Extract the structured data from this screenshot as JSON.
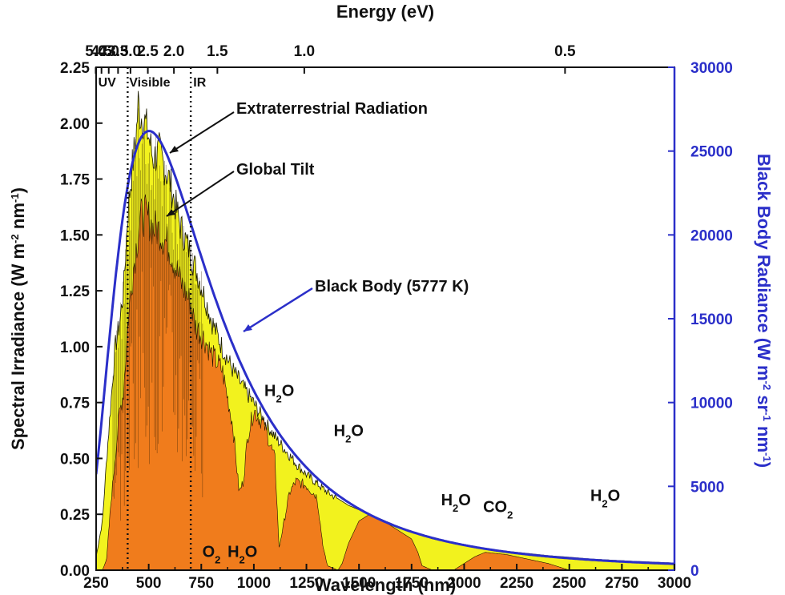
{
  "chart_data": {
    "type": "area",
    "x_axis": {
      "label": "Wavelength (nm)",
      "range": [
        250,
        3000
      ],
      "ticks": [
        250,
        500,
        750,
        1000,
        1250,
        1500,
        1750,
        2000,
        2250,
        2500,
        2750,
        3000
      ]
    },
    "top_axis": {
      "label": "Energy (eV)",
      "ticks": [
        5.0,
        4.5,
        4.0,
        3.5,
        3.0,
        2.5,
        2.0,
        1.5,
        1.0,
        0.5
      ],
      "tick_labels": [
        "5.0",
        "4.5",
        "4.0",
        "3.5",
        "3.0",
        "2.5",
        "2.0",
        "1.5",
        "1.0",
        "0.5"
      ]
    },
    "y_axis_left": {
      "label": "Spectral Irradiance (W m-2 nm-1)",
      "label_parts": [
        "Spectral Irradiance (W m",
        "-2",
        " nm",
        "-1",
        ")"
      ],
      "range": [
        0,
        2.25
      ],
      "ticks": [
        0,
        0.25,
        0.5,
        0.75,
        1.0,
        1.25,
        1.5,
        1.75,
        2.0,
        2.25
      ],
      "tick_labels": [
        "0.00",
        "0.25",
        "0.50",
        "0.75",
        "1.00",
        "1.25",
        "1.50",
        "1.75",
        "2.00",
        "2.25"
      ]
    },
    "y_axis_right": {
      "label": "Black Body Radiance (W m-2 sr-1 nm-1)",
      "label_parts": [
        "Black Body Radiance (W m",
        "-2",
        " sr",
        "-1",
        " nm",
        "-1",
        ")"
      ],
      "range": [
        0,
        30000
      ],
      "ticks": [
        0,
        5000,
        10000,
        15000,
        20000,
        25000,
        30000
      ],
      "color": "#2b2fc9"
    },
    "series": [
      {
        "name": "Extraterrestrial Radiation",
        "color": "#f2f21e",
        "x": [
          250,
          280,
          300,
          320,
          340,
          360,
          380,
          400,
          420,
          440,
          450,
          460,
          480,
          500,
          520,
          550,
          600,
          650,
          700,
          750,
          800,
          850,
          900,
          950,
          1000,
          1050,
          1100,
          1150,
          1200,
          1250,
          1300,
          1350,
          1400,
          1450,
          1500,
          1550,
          1600,
          1650,
          1700,
          1750,
          1800,
          1850,
          1900,
          1950,
          2000,
          2100,
          2200,
          2300,
          2400,
          2500,
          2600,
          2700,
          2800,
          2900,
          3000
        ],
        "y": [
          0.06,
          0.22,
          0.5,
          0.75,
          1.0,
          1.1,
          1.25,
          1.6,
          1.8,
          1.95,
          2.1,
          2.05,
          2.02,
          1.95,
          1.85,
          1.88,
          1.75,
          1.55,
          1.42,
          1.28,
          1.12,
          1.0,
          0.9,
          0.82,
          0.75,
          0.67,
          0.6,
          0.54,
          0.48,
          0.43,
          0.39,
          0.35,
          0.32,
          0.29,
          0.27,
          0.25,
          0.23,
          0.21,
          0.19,
          0.17,
          0.155,
          0.14,
          0.13,
          0.12,
          0.11,
          0.095,
          0.085,
          0.075,
          0.065,
          0.058,
          0.05,
          0.045,
          0.04,
          0.036,
          0.032
        ]
      },
      {
        "name": "Global Tilt",
        "color": "#f07c1c",
        "x": [
          280,
          300,
          320,
          340,
          360,
          380,
          400,
          420,
          440,
          460,
          480,
          500,
          520,
          550,
          600,
          650,
          700,
          720,
          760,
          800,
          850,
          900,
          930,
          950,
          970,
          1000,
          1050,
          1100,
          1120,
          1140,
          1170,
          1200,
          1250,
          1300,
          1330,
          1350,
          1400,
          1420,
          1450,
          1500,
          1550,
          1600,
          1650,
          1700,
          1750,
          1780,
          1800,
          1850,
          1950,
          2000,
          2050,
          2100,
          2200,
          2300,
          2400,
          2500
        ],
        "y": [
          0,
          0.05,
          0.3,
          0.5,
          0.7,
          0.8,
          1.1,
          1.3,
          1.45,
          1.58,
          1.6,
          1.58,
          1.54,
          1.53,
          1.45,
          1.3,
          1.2,
          1.1,
          1.05,
          0.97,
          0.9,
          0.65,
          0.35,
          0.4,
          0.6,
          0.72,
          0.65,
          0.5,
          0.1,
          0.2,
          0.35,
          0.4,
          0.38,
          0.33,
          0.1,
          0.02,
          0.0,
          0.03,
          0.12,
          0.22,
          0.25,
          0.23,
          0.2,
          0.17,
          0.14,
          0.08,
          0.02,
          0.0,
          0.0,
          0.03,
          0.06,
          0.08,
          0.07,
          0.05,
          0.03,
          0.0
        ]
      },
      {
        "name": "Black Body (5777 K)",
        "axis": "right",
        "temperature_K": 5777,
        "color": "#2b2fc9"
      }
    ],
    "regions": [
      {
        "label": "UV",
        "x_boundary": 400
      },
      {
        "label": "Visible",
        "x_boundary": 700
      },
      {
        "label": "IR"
      }
    ],
    "annotations": [
      {
        "text": "Extraterrestrial Radiation",
        "points_to_x": 510
      },
      {
        "text": "Global Tilt",
        "points_to_x": 570
      },
      {
        "text": "Black Body (5777 K)",
        "points_to_x": 990
      },
      {
        "text": "H2O",
        "base": "H",
        "sub": "2",
        "tail": "O",
        "x": 1050,
        "y": 0.78
      },
      {
        "text": "H2O",
        "base": "H",
        "sub": "2",
        "tail": "O",
        "x": 1380,
        "y": 0.6
      },
      {
        "text": "H2O",
        "base": "H",
        "sub": "2",
        "tail": "O",
        "x": 1890,
        "y": 0.29
      },
      {
        "text": "CO2",
        "base": "CO",
        "sub": "2",
        "tail": "",
        "x": 2090,
        "y": 0.26
      },
      {
        "text": "H2O",
        "base": "H",
        "sub": "2",
        "tail": "O",
        "x": 2600,
        "y": 0.31
      },
      {
        "text": "O2",
        "base": "O",
        "sub": "2",
        "tail": "",
        "x": 755,
        "y": 0.06
      },
      {
        "text": "H2O",
        "base": "H",
        "sub": "2",
        "tail": "O",
        "x": 875,
        "y": 0.06
      }
    ]
  }
}
